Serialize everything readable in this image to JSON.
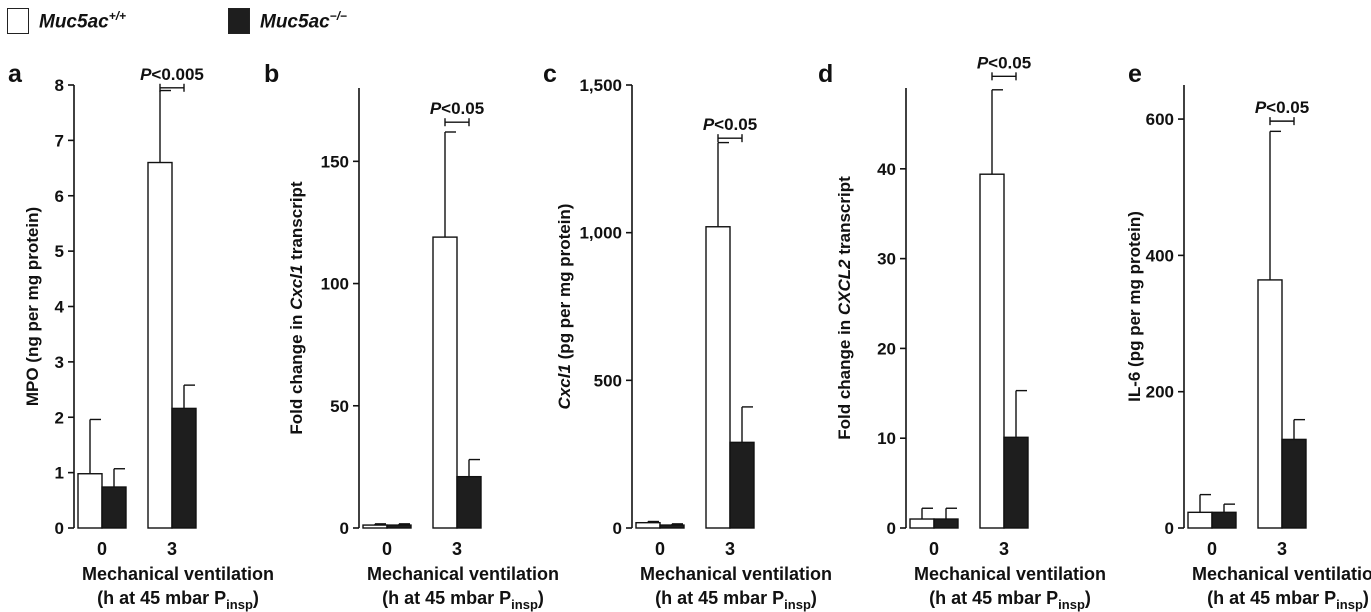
{
  "legend": {
    "wt_label": "Muc5ac",
    "wt_sup": "+/+",
    "ko_label": "Muc5ac",
    "ko_sup": "−/−",
    "wt_color": "#ffffff",
    "ko_color": "#1e1e1e"
  },
  "chart_data": [
    {
      "panel": "a",
      "type": "bar",
      "ylabel": "MPO (ng per mg protein)",
      "ylim": [
        0,
        8
      ],
      "yticks": [
        "0",
        "1",
        "2",
        "3",
        "4",
        "5",
        "6",
        "7",
        "8"
      ],
      "yticks_values": [
        0,
        1,
        2,
        3,
        4,
        5,
        6,
        7,
        8
      ],
      "categories": [
        "0",
        "3"
      ],
      "xlabel_line1": "Mechanical ventilation",
      "xlabel_line2": "(h at 45 mbar P",
      "xlabel_sub": "insp",
      "xlabel_close": ")",
      "series": [
        {
          "name": "Muc5ac+/+",
          "values": [
            0.98,
            6.6
          ],
          "errors": [
            0.98,
            1.3
          ]
        },
        {
          "name": "Muc5ac−/−",
          "values": [
            0.74,
            2.16
          ],
          "errors": [
            0.33,
            0.42
          ]
        }
      ],
      "sig": "P<0.005",
      "sig_value": 7.95
    },
    {
      "panel": "b",
      "type": "bar",
      "ylabel": "Fold change in Cxcl1 transcript",
      "ylim": [
        0,
        180
      ],
      "yticks": [
        "0",
        "50",
        "100",
        "150"
      ],
      "yticks_values": [
        0,
        50,
        100,
        150
      ],
      "categories": [
        "0",
        "3"
      ],
      "xlabel_line1": "Mechanical ventilation",
      "xlabel_line2": "(h at 45 mbar P",
      "xlabel_sub": "insp",
      "xlabel_close": ")",
      "series": [
        {
          "name": "Muc5ac+/+",
          "values": [
            1.2,
            119
          ],
          "errors": [
            0.5,
            43
          ]
        },
        {
          "name": "Muc5ac−/−",
          "values": [
            1.2,
            21
          ],
          "errors": [
            0.5,
            7
          ]
        }
      ],
      "sig": "P<0.05",
      "sig_value": 166
    },
    {
      "panel": "c",
      "type": "bar",
      "ylabel": "Cxcl1 (pg per mg protein)",
      "ylim": [
        0,
        1500
      ],
      "yticks": [
        "0",
        "500",
        "1,000",
        "1,500"
      ],
      "yticks_values": [
        0,
        500,
        1000,
        1500
      ],
      "categories": [
        "0",
        "3"
      ],
      "xlabel_line1": "Mechanical ventilation",
      "xlabel_line2": "(h at 45 mbar P",
      "xlabel_sub": "insp",
      "xlabel_close": ")",
      "series": [
        {
          "name": "Muc5ac+/+",
          "values": [
            18,
            1020
          ],
          "errors": [
            4,
            285
          ]
        },
        {
          "name": "Muc5ac−/−",
          "values": [
            10,
            290
          ],
          "errors": [
            4,
            120
          ]
        }
      ],
      "sig": "P<0.05",
      "sig_value": 1320
    },
    {
      "panel": "d",
      "type": "bar",
      "ylabel": "Fold change in CXCL2 transcript",
      "ylim": [
        0,
        49
      ],
      "yticks": [
        "0",
        "10",
        "20",
        "30",
        "40"
      ],
      "yticks_values": [
        0,
        10,
        20,
        30,
        40
      ],
      "categories": [
        "0",
        "3"
      ],
      "xlabel_line1": "Mechanical ventilation",
      "xlabel_line2": "(h at 45 mbar P",
      "xlabel_sub": "insp",
      "xlabel_close": ")",
      "series": [
        {
          "name": "Muc5ac+/+",
          "values": [
            1.0,
            39.4
          ],
          "errors": [
            1.2,
            9.4
          ]
        },
        {
          "name": "Muc5ac−/−",
          "values": [
            1.0,
            10.1
          ],
          "errors": [
            1.2,
            5.2
          ]
        }
      ],
      "sig": "P<0.05",
      "sig_value": 50.3
    },
    {
      "panel": "e",
      "type": "bar",
      "ylabel": "IL-6  (pg per mg protein)",
      "ylim": [
        0,
        650
      ],
      "yticks": [
        "0",
        "200",
        "400",
        "600"
      ],
      "yticks_values": [
        0,
        200,
        400,
        600
      ],
      "categories": [
        "0",
        "3"
      ],
      "xlabel_line1": "Mechanical ventilation",
      "xlabel_line2": "(h at 45 mbar P",
      "xlabel_sub": "insp",
      "xlabel_close": ")",
      "series": [
        {
          "name": "Muc5ac+/+",
          "values": [
            23,
            364
          ],
          "errors": [
            26,
            218
          ]
        },
        {
          "name": "Muc5ac−/−",
          "values": [
            23,
            130
          ],
          "errors": [
            12,
            29
          ]
        }
      ],
      "sig": "P<0.05",
      "sig_value": 597
    }
  ]
}
